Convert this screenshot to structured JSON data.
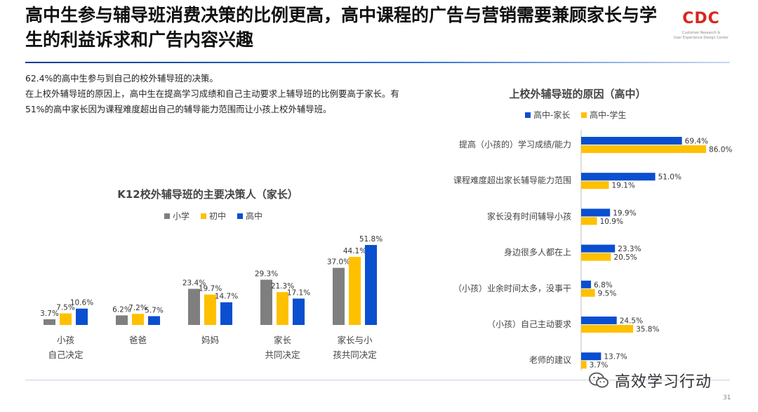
{
  "page": {
    "title": "高中生参与辅导班消费决策的比例更高，高中课程的广告与营销需要兼顾家长与学生的利益诉求和广告内容兴趣",
    "logo": {
      "text": "CDC",
      "line1": "Customer Research &",
      "line2": "User Experience Design Center"
    },
    "intro_lines": [
      "62.4%的高中生参与到自己的校外辅导班的决策。",
      "在上校外辅导班的原因上，高中生在提高学习成绩和自己主动要求上辅导班的比例要高于家长。有51%的高中家长因为课程难度超出自己的辅导能力范围而让小孩上校外辅导班。"
    ],
    "page_number": "31",
    "watermark": "高效学习行动"
  },
  "colors": {
    "gray": "#7f7f7f",
    "yellow": "#ffc000",
    "blue": "#0a4fd0"
  },
  "chart_data": [
    {
      "type": "bar",
      "title": "K12校外辅导班的主要决策人（家长）",
      "categories": [
        [
          "小孩",
          "自己决定"
        ],
        [
          "爸爸"
        ],
        [
          "妈妈"
        ],
        [
          "家长",
          "共同决定"
        ],
        [
          "家长与小",
          "孩共同决定"
        ]
      ],
      "series": [
        {
          "name": "小学",
          "values": [
            3.7,
            6.2,
            23.4,
            29.3,
            37.0
          ],
          "labels": [
            "3.7%",
            "6.2%",
            "23.4%",
            "29.3%",
            "37.0%"
          ]
        },
        {
          "name": "初中",
          "values": [
            7.5,
            7.2,
            19.7,
            21.3,
            44.1
          ],
          "labels": [
            "7.5%",
            "7.2%",
            "19.7%",
            "21.3%",
            "44.1%"
          ]
        },
        {
          "name": "高中",
          "values": [
            10.6,
            5.7,
            14.7,
            17.1,
            51.8
          ],
          "labels": [
            "10.6%",
            "5.7%",
            "14.7%",
            "17.1%",
            "51.8%"
          ]
        }
      ],
      "legend_position": "top",
      "grid": false
    },
    {
      "type": "bar",
      "orientation": "horizontal",
      "title": "上校外辅导班的原因（高中）",
      "categories": [
        "提高（小孩的）学习成绩/能力",
        "课程难度超出家长辅导能力范围",
        "家长没有时间辅导小孩",
        "身边很多人都在上",
        "（小孩）业余时间太多，没事干",
        "（小孩）自己主动要求",
        "老师的建议"
      ],
      "series": [
        {
          "name": "高中-家长",
          "values": [
            69.4,
            51.0,
            19.9,
            23.3,
            6.8,
            24.5,
            13.7
          ],
          "labels": [
            "69.4%",
            "51.0%",
            "19.9%",
            "23.3%",
            "6.8%",
            "24.5%",
            "13.7%"
          ]
        },
        {
          "name": "高中-学生",
          "values": [
            86.0,
            19.1,
            10.9,
            20.5,
            9.5,
            35.8,
            3.7
          ],
          "labels": [
            "86.0%",
            "19.1%",
            "10.9%",
            "20.5%",
            "9.5%",
            "35.8%",
            "3.7%"
          ]
        }
      ],
      "legend_position": "top",
      "grid": false
    }
  ]
}
